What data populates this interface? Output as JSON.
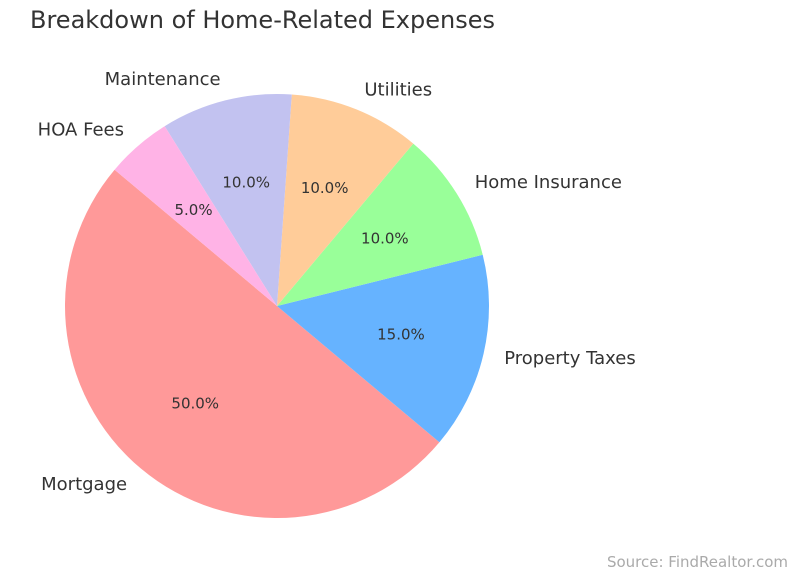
{
  "source": "Source: FindRealtor.com",
  "chart_data": {
    "type": "pie",
    "title": "Breakdown of Home-Related Expenses",
    "slices": [
      {
        "label": "Mortgage",
        "value": 50.0,
        "pct_label": "50.0%",
        "color": "#ff9999"
      },
      {
        "label": "Property Taxes",
        "value": 15.0,
        "pct_label": "15.0%",
        "color": "#66b3ff"
      },
      {
        "label": "Home Insurance",
        "value": 10.0,
        "pct_label": "10.0%",
        "color": "#99ff99"
      },
      {
        "label": "Utilities",
        "value": 10.0,
        "pct_label": "10.0%",
        "color": "#ffcc99"
      },
      {
        "label": "Maintenance",
        "value": 10.0,
        "pct_label": "10.0%",
        "color": "#c2c2f0"
      },
      {
        "label": "HOA Fees",
        "value": 5.0,
        "pct_label": "5.0%",
        "color": "#ffb3e6"
      }
    ],
    "start_angle_deg": 140,
    "direction": "counterclockwise"
  }
}
